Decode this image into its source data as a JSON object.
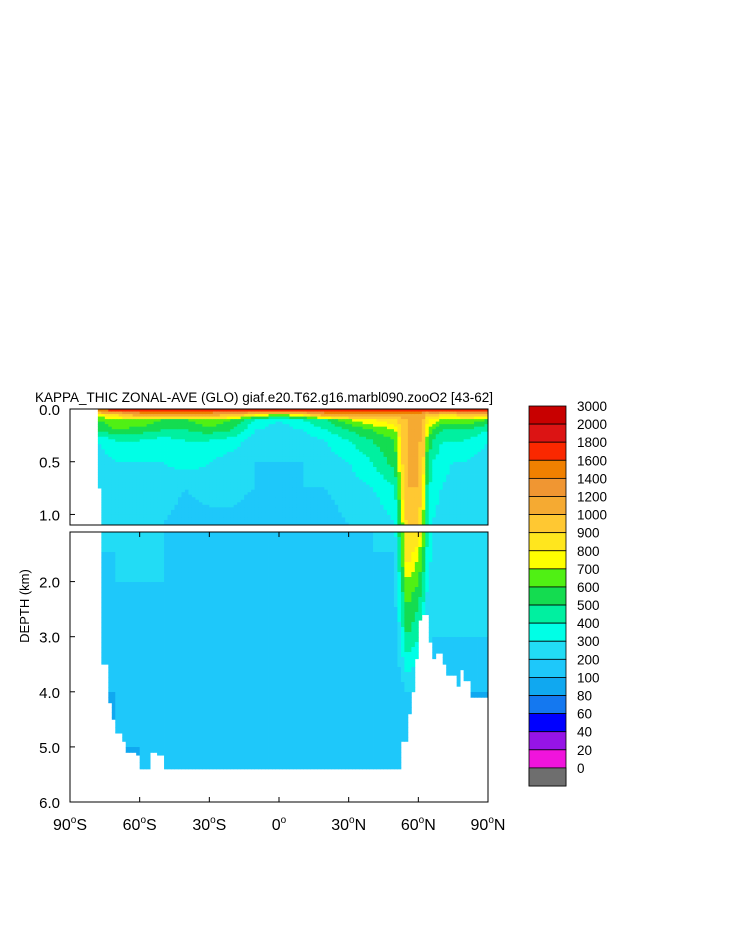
{
  "chart_data": {
    "type": "heatmap",
    "title": "KAPPA_THIC ZONAL-AVE (GLO) giaf.e20.T62.g16.marbl090.zooO2 [43-62]",
    "ylabel": "DEPTH (km)",
    "xlabel": "",
    "xlim": [
      -90,
      90
    ],
    "ylim": [
      6.0,
      0.0
    ],
    "y_break": 1.1,
    "x_ticks": [
      {
        "v": -90,
        "n": "90",
        "h": "S"
      },
      {
        "v": -60,
        "n": "60",
        "h": "S"
      },
      {
        "v": -30,
        "n": "30",
        "h": "S"
      },
      {
        "v": 0,
        "n": "0",
        "h": ""
      },
      {
        "v": 30,
        "n": "30",
        "h": "N"
      },
      {
        "v": 60,
        "n": "60",
        "h": "N"
      },
      {
        "v": 90,
        "n": "90",
        "h": "N"
      }
    ],
    "y_ticks_upper": [
      {
        "v": 0.0,
        "label": "0.0"
      },
      {
        "v": 0.5,
        "label": "0.5"
      },
      {
        "v": 1.0,
        "label": "1.0"
      }
    ],
    "y_ticks_lower": [
      {
        "v": 2.0,
        "label": "2.0"
      },
      {
        "v": 3.0,
        "label": "3.0"
      },
      {
        "v": 4.0,
        "label": "4.0"
      },
      {
        "v": 5.0,
        "label": "5.0"
      },
      {
        "v": 6.0,
        "label": "6.0"
      }
    ],
    "colorbar": {
      "boundaries": [
        "3000",
        "2000",
        "1800",
        "1600",
        "1400",
        "1200",
        "1000",
        "900",
        "800",
        "700",
        "600",
        "500",
        "400",
        "300",
        "200",
        "100",
        "80",
        "60",
        "40",
        "20",
        "0"
      ],
      "colors": [
        "#c80000",
        "#dc1414",
        "#fa2800",
        "#f08000",
        "#f09632",
        "#f5aa32",
        "#ffc832",
        "#ffe61e",
        "#ffff00",
        "#50f014",
        "#14dc50",
        "#00f0a0",
        "#00ffe6",
        "#22dcf5",
        "#1ec8fa",
        "#10a8f0",
        "#1478f0",
        "#0000ff",
        "#9614e6",
        "#f014dc",
        "#c8c8c8",
        "#6e6e6e"
      ]
    },
    "depth_field": {
      "levels": [
        0.0,
        0.01,
        0.05,
        0.1,
        0.2,
        0.3,
        0.5,
        0.75,
        1.1,
        1.5,
        2.0,
        3.0,
        4.0,
        5.0,
        6.0
      ],
      "lats": [
        -78,
        -70,
        -60,
        -50,
        -40,
        -30,
        -20,
        -10,
        0,
        10,
        20,
        30,
        40,
        50,
        55,
        60,
        62,
        64,
        66,
        70,
        75,
        80,
        90
      ],
      "values": [
        [
          3000,
          3000,
          3000,
          3000,
          3000,
          3000,
          3000,
          3000,
          3000,
          3000,
          3000,
          3000,
          3000,
          3000,
          3000,
          3000,
          3000,
          3000,
          3000,
          3000,
          3000,
          3000,
          3000
        ],
        [
          1600,
          2000,
          2000,
          2000,
          2000,
          2000,
          2000,
          2000,
          2000,
          2000,
          2000,
          2000,
          2000,
          2000,
          2000,
          2000,
          2000,
          2000,
          2000,
          2000,
          2000,
          2000,
          2000
        ],
        [
          900,
          1000,
          1400,
          1400,
          1400,
          1400,
          1200,
          1000,
          800,
          1000,
          1400,
          1400,
          1400,
          1400,
          1400,
          1400,
          1400,
          1000,
          1200,
          1000,
          1000,
          1200,
          1200
        ],
        [
          700,
          800,
          800,
          700,
          700,
          800,
          700,
          500,
          400,
          500,
          600,
          800,
          900,
          1000,
          1200,
          1200,
          1200,
          900,
          900,
          800,
          800,
          800,
          700
        ],
        [
          600,
          700,
          650,
          600,
          600,
          650,
          600,
          400,
          350,
          400,
          500,
          600,
          700,
          800,
          1200,
          1200,
          1200,
          800,
          700,
          600,
          600,
          600,
          500
        ],
        [
          400,
          500,
          500,
          450,
          500,
          500,
          450,
          350,
          300,
          350,
          400,
          500,
          600,
          700,
          1200,
          1200,
          1200,
          700,
          600,
          500,
          500,
          500,
          400
        ],
        [
          350,
          400,
          400,
          400,
          450,
          400,
          350,
          300,
          300,
          300,
          350,
          400,
          500,
          650,
          1200,
          1200,
          1000,
          600,
          500,
          450,
          400,
          400,
          350
        ],
        [
          300,
          300,
          350,
          350,
          300,
          350,
          350,
          300,
          250,
          300,
          300,
          350,
          400,
          500,
          1200,
          1200,
          900,
          550,
          450,
          400,
          350,
          350,
          300
        ],
        [
          300,
          300,
          300,
          300,
          250,
          250,
          250,
          200,
          200,
          200,
          250,
          300,
          300,
          400,
          1000,
          1000,
          800,
          500,
          400,
          350,
          300,
          300,
          300
        ],
        [
          300,
          300,
          300,
          300,
          300,
          250,
          250,
          200,
          200,
          200,
          200,
          250,
          300,
          300,
          1000,
          800,
          700,
          450,
          400,
          350,
          300,
          300,
          300
        ],
        [
          250,
          300,
          300,
          300,
          250,
          250,
          200,
          200,
          200,
          200,
          200,
          200,
          250,
          300,
          800,
          700,
          600,
          400,
          300,
          300,
          300,
          300,
          300
        ],
        [
          250,
          250,
          250,
          250,
          250,
          200,
          200,
          200,
          200,
          200,
          200,
          200,
          200,
          250,
          600,
          500,
          400,
          300,
          300,
          300,
          300,
          300,
          300
        ],
        [
          200,
          200,
          200,
          200,
          200,
          200,
          200,
          200,
          200,
          200,
          200,
          200,
          200,
          200,
          300,
          300,
          300,
          300,
          300,
          200,
          200,
          200,
          200
        ],
        [
          150,
          200,
          200,
          200,
          200,
          200,
          200,
          200,
          200,
          200,
          200,
          200,
          200,
          200,
          200,
          200,
          200,
          200,
          200,
          200,
          200,
          150,
          150
        ],
        [
          150,
          150,
          200,
          200,
          200,
          200,
          200,
          200,
          200,
          200,
          200,
          200,
          200,
          200,
          200,
          200,
          200,
          200,
          200,
          200,
          200,
          150,
          150
        ]
      ],
      "bottom_depth": [
        [
          -78,
          0.75
        ],
        [
          -76,
          3.5
        ],
        [
          -74,
          4.2
        ],
        [
          -72,
          4.5
        ],
        [
          -70,
          4.75
        ],
        [
          -68,
          4.9
        ],
        [
          -66,
          5.1
        ],
        [
          -62,
          5.15
        ],
        [
          -60,
          5.4
        ],
        [
          -56,
          5.4
        ],
        [
          -55,
          5.1
        ],
        [
          -52,
          5.15
        ],
        [
          -50,
          5.4
        ],
        [
          -40,
          5.4
        ],
        [
          -30,
          5.4
        ],
        [
          -20,
          5.4
        ],
        [
          -10,
          5.4
        ],
        [
          0,
          5.4
        ],
        [
          10,
          5.4
        ],
        [
          20,
          5.4
        ],
        [
          30,
          5.4
        ],
        [
          40,
          5.4
        ],
        [
          52,
          5.4
        ],
        [
          53,
          4.9
        ],
        [
          55,
          4.4
        ],
        [
          57,
          4.0
        ],
        [
          59,
          3.4
        ],
        [
          60,
          2.7
        ],
        [
          61,
          2.3
        ],
        [
          62,
          2.6
        ],
        [
          64,
          3.1
        ],
        [
          66,
          3.4
        ],
        [
          68,
          3.3
        ],
        [
          70,
          3.5
        ],
        [
          72,
          3.7
        ],
        [
          74,
          3.7
        ],
        [
          76,
          3.9
        ],
        [
          78,
          3.6
        ],
        [
          80,
          3.8
        ],
        [
          82,
          4.1
        ],
        [
          90,
          4.1
        ]
      ]
    }
  }
}
